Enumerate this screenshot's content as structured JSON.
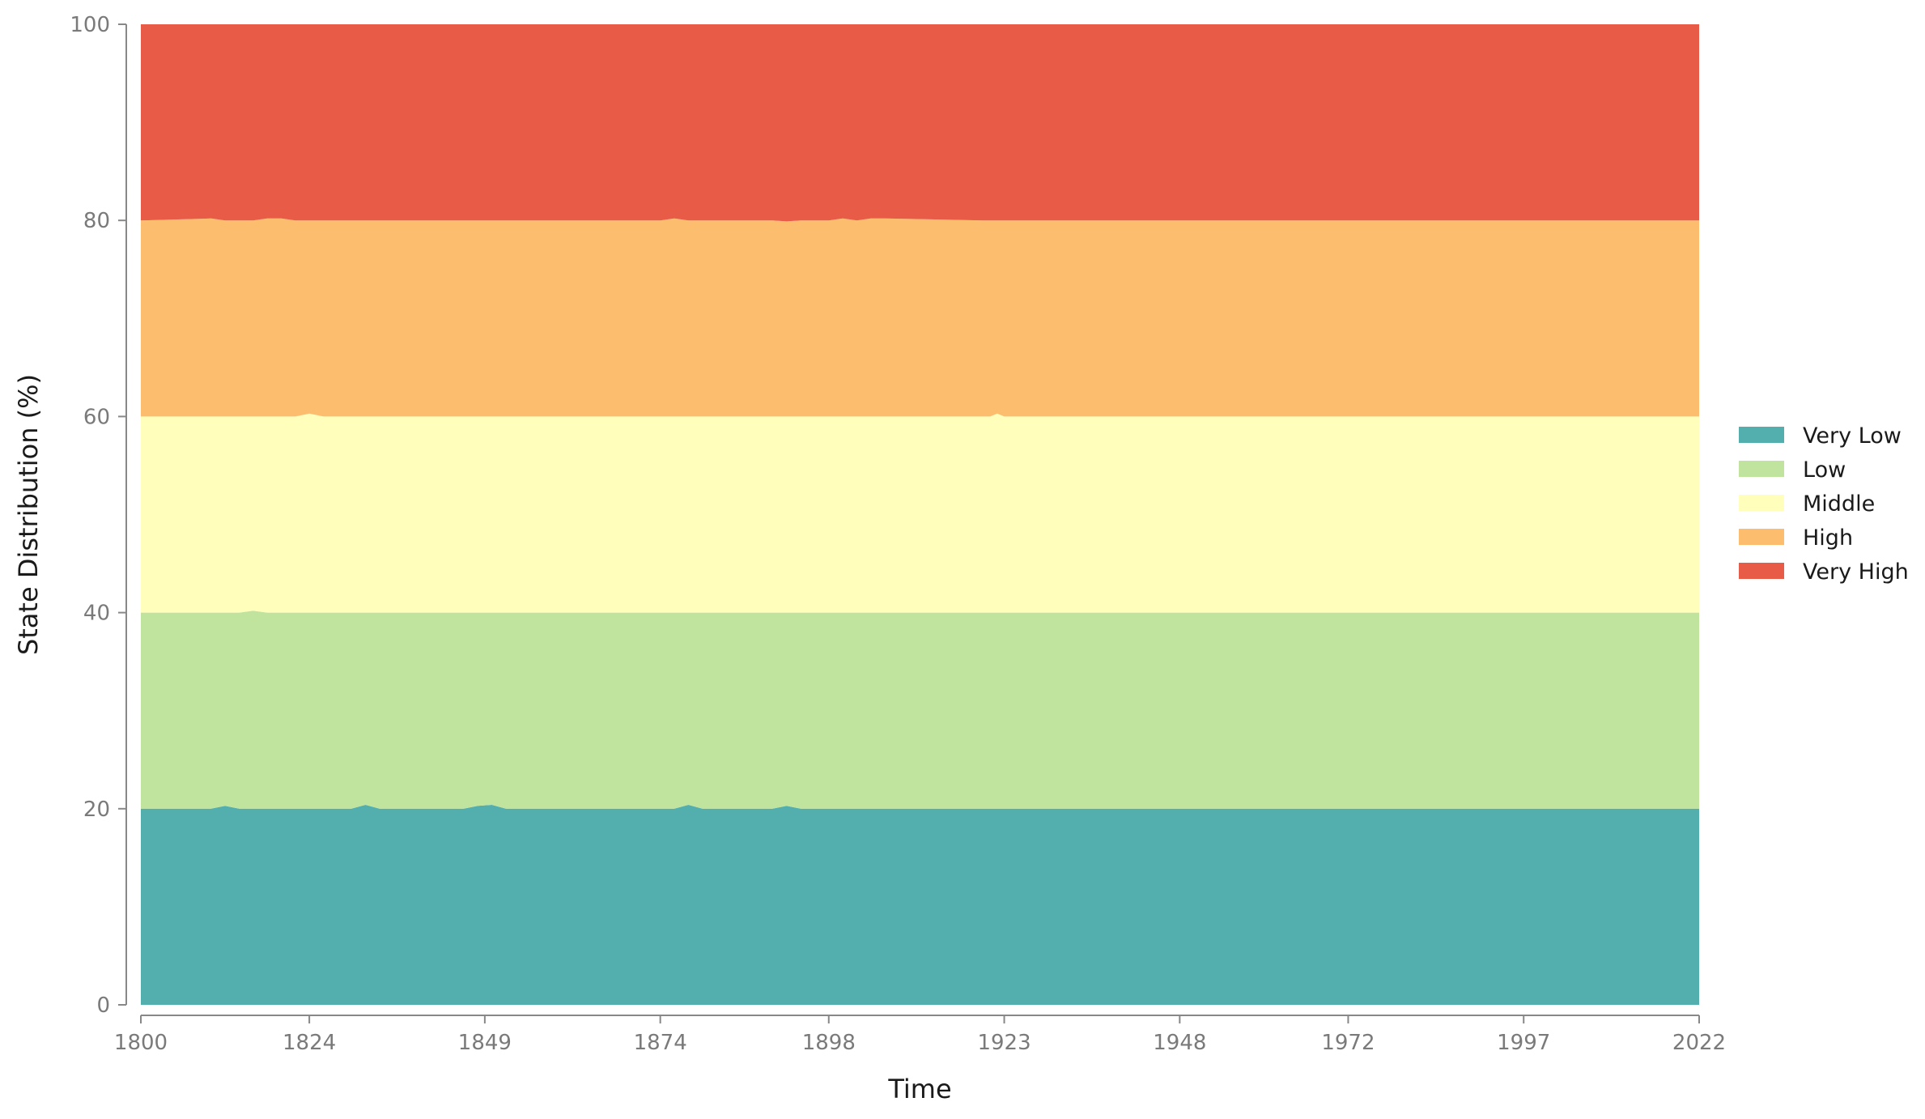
{
  "chart_data": {
    "type": "area",
    "stacked": true,
    "normalized": true,
    "xlabel": "Time",
    "ylabel": "State Distribution (%)",
    "xlim": [
      1800,
      2022
    ],
    "ylim": [
      0,
      100
    ],
    "x_ticks": [
      1800,
      1824,
      1849,
      1874,
      1898,
      1923,
      1948,
      1972,
      1997,
      2022
    ],
    "y_ticks": [
      0,
      20,
      40,
      60,
      80,
      100
    ],
    "grid": false,
    "legend_position": "right",
    "x": [
      1800,
      1810,
      1812,
      1814,
      1816,
      1818,
      1820,
      1822,
      1824,
      1826,
      1830,
      1832,
      1834,
      1840,
      1846,
      1848,
      1850,
      1852,
      1870,
      1874,
      1876,
      1878,
      1880,
      1882,
      1890,
      1892,
      1894,
      1896,
      1898,
      1900,
      1902,
      1904,
      1906,
      1920,
      1921,
      1922,
      1923,
      1940,
      2000,
      2022
    ],
    "series": [
      {
        "name": "Very Low",
        "color": "#53aeae",
        "values": [
          20,
          20,
          20.3,
          20,
          20,
          20,
          20,
          20,
          20,
          20,
          20,
          20.4,
          20,
          20,
          20,
          20.3,
          20.4,
          20,
          20,
          20,
          20,
          20.4,
          20,
          20,
          20,
          20.3,
          20,
          20,
          20,
          20,
          20,
          20,
          20,
          20,
          20,
          20,
          20,
          20,
          20,
          20
        ]
      },
      {
        "name": "Low",
        "color": "#c0e49e",
        "values": [
          20,
          20,
          19.7,
          20,
          20.2,
          20,
          20,
          20,
          20,
          20,
          20,
          19.6,
          20,
          20,
          20,
          19.7,
          19.6,
          20,
          20,
          20,
          20,
          19.6,
          20,
          20,
          20,
          19.7,
          20,
          20,
          20,
          20,
          20,
          20,
          20,
          20,
          20,
          20,
          20,
          20,
          20,
          20
        ]
      },
      {
        "name": "Middle",
        "color": "#fffebb",
        "values": [
          20,
          20,
          20,
          20,
          19.8,
          20,
          20,
          20,
          20.3,
          20,
          20,
          20,
          20,
          20,
          20,
          20,
          20,
          20,
          20,
          20,
          20,
          20,
          20,
          20,
          20,
          20,
          20,
          20,
          20,
          20,
          20,
          20,
          20,
          20,
          20,
          20.3,
          20,
          20,
          20,
          20
        ]
      },
      {
        "name": "High",
        "color": "#fdbd6f",
        "values": [
          20,
          20.2,
          20,
          20,
          20,
          20.2,
          20.2,
          20,
          19.7,
          20,
          20,
          20,
          20,
          20,
          20,
          20,
          20,
          20,
          20,
          20,
          20.2,
          20,
          20,
          20,
          20,
          19.9,
          20,
          20,
          20,
          20.2,
          20,
          20.2,
          20.2,
          20,
          20,
          19.7,
          20,
          20,
          20,
          20
        ]
      },
      {
        "name": "Very High",
        "color": "#e85c47",
        "values": [
          20,
          19.8,
          20,
          20,
          20,
          19.8,
          19.8,
          20,
          20,
          20,
          20,
          20,
          20,
          20,
          20,
          20,
          20,
          20,
          20,
          20,
          19.8,
          20,
          20,
          20,
          20,
          20.1,
          20,
          20,
          20,
          19.8,
          20,
          19.8,
          19.8,
          20,
          20,
          20,
          20,
          20,
          20,
          20
        ]
      }
    ]
  }
}
